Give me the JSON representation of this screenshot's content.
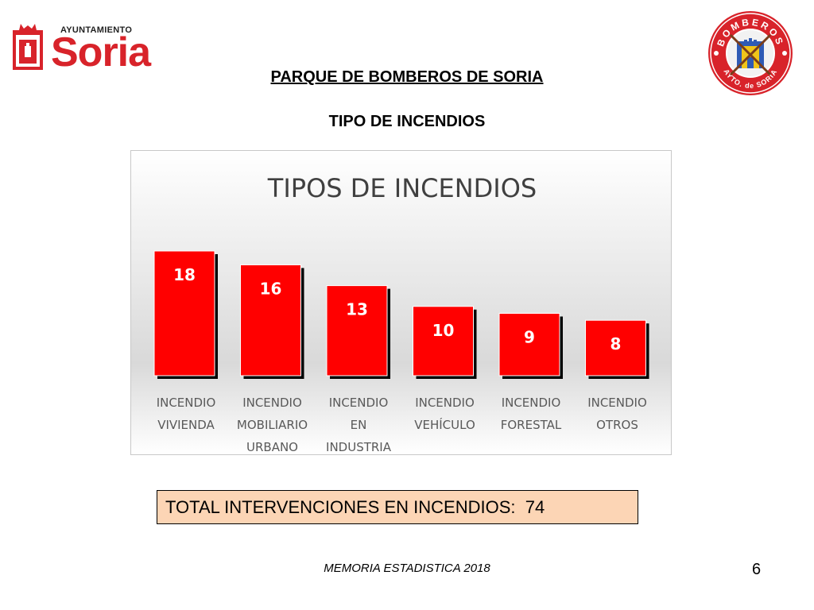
{
  "logo_left": {
    "small_text": "AYUNTAMIENTO",
    "big_text": "Soria"
  },
  "logo_right": {
    "top_text": "BOMBEROS",
    "bottom_text": "AYTO. de SORIA"
  },
  "header": {
    "title": "PARQUE DE BOMBEROS DE SORIA",
    "subtitle": "TIPO DE INCENDIOS"
  },
  "colors": {
    "bar": "#ff0000",
    "bar_shadow": "#000000",
    "accent": "#d8232a",
    "total_bg": "#fcd5b5"
  },
  "chart_data": {
    "type": "bar",
    "title": "TIPOS DE INCENDIOS",
    "categories": [
      [
        "INCENDIO",
        "VIVIENDA"
      ],
      [
        "INCENDIO",
        "MOBILIARIO",
        "URBANO"
      ],
      [
        "INCENDIO",
        "EN",
        "INDUSTRIA"
      ],
      [
        "INCENDIO",
        "VEHÍCULO"
      ],
      [
        "INCENDIO",
        "FORESTAL"
      ],
      [
        "INCENDIO",
        "OTROS"
      ]
    ],
    "values": [
      18,
      16,
      13,
      10,
      9,
      8
    ],
    "ylim": [
      0,
      18
    ],
    "grid": false,
    "legend": "none",
    "data_labels": "inside-top"
  },
  "total": {
    "label": "TOTAL INTERVENCIONES EN INCENDIOS:",
    "value": "74"
  },
  "footer": {
    "text": "MEMORIA ESTADISTICA 2018",
    "page": "6"
  }
}
